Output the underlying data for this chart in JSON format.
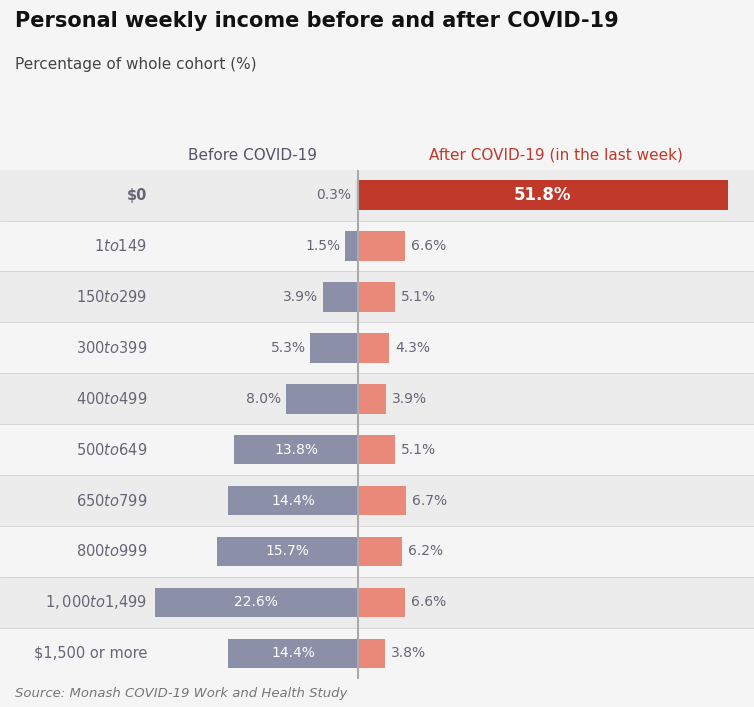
{
  "title": "Personal weekly income before and after COVID-19",
  "subtitle": "Percentage of whole cohort (%)",
  "source": "Source: Monash COVID-19 Work and Health Study",
  "categories": [
    "$0",
    "$1 to $149",
    "$150 to $299",
    "$300 to $399",
    "$400 to $499",
    "$500 to $649",
    "$650 to $799",
    "$800 to $999",
    "$1,000 to $1,499",
    "$1,500 or more"
  ],
  "before_values": [
    0.3,
    1.5,
    3.9,
    5.3,
    8.0,
    13.8,
    14.4,
    15.7,
    22.6,
    14.4
  ],
  "after_values": [
    51.8,
    6.6,
    5.1,
    4.3,
    3.9,
    5.1,
    6.7,
    6.2,
    6.6,
    3.8
  ],
  "before_label": "Before COVID-19",
  "after_label": "After COVID-19 (in the last week)",
  "before_color_default": "#8B8FA8",
  "before_color_zero": "#E2E2E2",
  "after_color_default": "#E8897A",
  "after_color_zero": "#C0392B",
  "before_label_color": "#555566",
  "after_label_color": "#C0392B",
  "background_color": "#F5F5F5",
  "row_color_odd": "#ECECEC",
  "row_color_even": "#F5F5F5",
  "divider_color": "#AAAAAA",
  "title_fontsize": 15,
  "subtitle_fontsize": 11,
  "label_fontsize": 10.5,
  "value_fontsize": 10,
  "source_fontsize": 9.5,
  "inside_label_threshold": 10.0,
  "before_scale": 1.24,
  "after_scale": 1.06
}
